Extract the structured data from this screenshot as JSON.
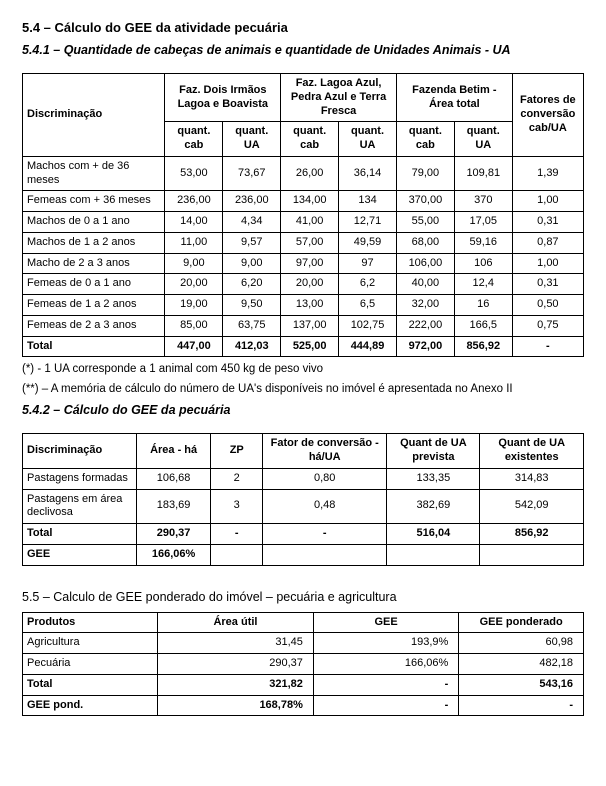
{
  "h54": "5.4 – Cálculo do GEE da atividade pecuária",
  "h541": "5.4.1 – Quantidade de cabeças de animais e quantidade de Unidades Animais - UA",
  "t1": {
    "head": {
      "disc": "Discriminação",
      "farm1": "Faz. Dois Irmãos Lagoa e Boavista",
      "farm2": "Faz. Lagoa Azul, Pedra Azul e Terra Fresca",
      "farm3": "Fazenda Betim - Área total",
      "factors": "Fatores de conversão cab/UA",
      "qcab": "quant. cab",
      "qua": "quant. UA"
    },
    "rows": [
      {
        "label": "Machos com + de 36 meses",
        "c": [
          "53,00",
          "73,67",
          "26,00",
          "36,14",
          "79,00",
          "109,81",
          "1,39"
        ]
      },
      {
        "label": "Femeas com + 36 meses",
        "c": [
          "236,00",
          "236,00",
          "134,00",
          "134",
          "370,00",
          "370",
          "1,00"
        ]
      },
      {
        "label": "Machos de 0 a 1 ano",
        "c": [
          "14,00",
          "4,34",
          "41,00",
          "12,71",
          "55,00",
          "17,05",
          "0,31"
        ]
      },
      {
        "label": "Machos de 1 a 2 anos",
        "c": [
          "11,00",
          "9,57",
          "57,00",
          "49,59",
          "68,00",
          "59,16",
          "0,87"
        ]
      },
      {
        "label": "Macho de 2 a 3 anos",
        "c": [
          "9,00",
          "9,00",
          "97,00",
          "97",
          "106,00",
          "106",
          "1,00"
        ]
      },
      {
        "label": "Femeas de 0 a 1 ano",
        "c": [
          "20,00",
          "6,20",
          "20,00",
          "6,2",
          "40,00",
          "12,4",
          "0,31"
        ]
      },
      {
        "label": "Femeas de 1 a 2 anos",
        "c": [
          "19,00",
          "9,50",
          "13,00",
          "6,5",
          "32,00",
          "16",
          "0,50"
        ]
      },
      {
        "label": "Femeas de 2 a 3 anos",
        "c": [
          "85,00",
          "63,75",
          "137,00",
          "102,75",
          "222,00",
          "166,5",
          "0,75"
        ]
      }
    ],
    "total": {
      "label": "Total",
      "c": [
        "447,00",
        "412,03",
        "525,00",
        "444,89",
        "972,00",
        "856,92",
        "-"
      ]
    }
  },
  "note1": "(*) - 1 UA corresponde a 1 animal com 450 kg de peso vivo",
  "note2": "(**) – A memória de cálculo do número de UA's disponíveis no imóvel é apresentada no Anexo II",
  "h542": "5.4.2 – Cálculo do GEE da pecuária",
  "t2": {
    "head": {
      "disc": "Discriminação",
      "area": "Área - há",
      "zp": "ZP",
      "fc": "Fator de conversão - há/UA",
      "qp": "Quant de UA prevista",
      "qe": "Quant de UA existentes"
    },
    "rows": [
      {
        "label": "Pastagens formadas",
        "c": [
          "106,68",
          "2",
          "0,80",
          "133,35",
          "314,83"
        ]
      },
      {
        "label": "Pastagens em área declivosa",
        "c": [
          "183,69",
          "3",
          "0,48",
          "382,69",
          "542,09"
        ]
      }
    ],
    "total": {
      "label": "Total",
      "c": [
        "290,37",
        "-",
        "-",
        "516,04",
        "856,92"
      ]
    },
    "gee": {
      "label": "GEE",
      "c": [
        "166,06%",
        "",
        "",
        "",
        ""
      ]
    }
  },
  "h55": "5.5 – Calculo de GEE ponderado do imóvel – pecuária e agricultura",
  "t3": {
    "head": {
      "prod": "Produtos",
      "area": "Área útil",
      "gee": "GEE",
      "gp": "GEE ponderado"
    },
    "rows": [
      {
        "label": "Agricultura",
        "c": [
          "31,45",
          "193,9%",
          "60,98"
        ]
      },
      {
        "label": "Pecuária",
        "c": [
          "290,37",
          "166,06%",
          "482,18"
        ]
      }
    ],
    "total": {
      "label": "Total",
      "c": [
        "321,82",
        "-",
        "543,16"
      ]
    },
    "gp": {
      "label": "GEE pond.",
      "c": [
        "168,78%",
        "-",
        "-"
      ]
    }
  }
}
